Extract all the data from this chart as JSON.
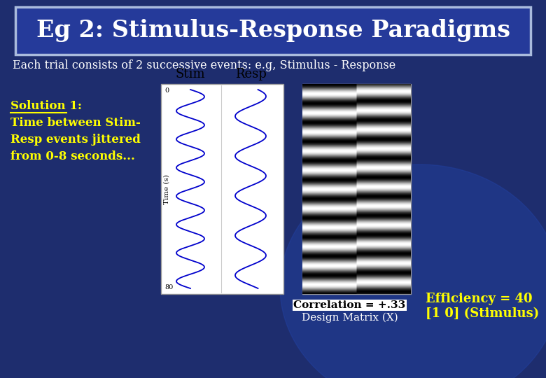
{
  "title": "Eg 2: Stimulus-Response Paradigms",
  "subtitle": "Each trial consists of 2 successive events: e.g, Stimulus - Response",
  "solution_text": [
    "Solution 1:",
    "Time between Stim-",
    "Resp events jittered",
    "from 0-8 seconds..."
  ],
  "stim_label": "Stim",
  "resp_label": "Resp",
  "time_label": "Time (s)",
  "correlation_text": "Correlation = +.33",
  "design_matrix_text": "Design Matrix (X)",
  "efficiency_text": "Efficiency = 40",
  "efficiency_text2": "[1 0] (Stimulus)",
  "bg_color": "#1e2d6e",
  "bg_color_bottom": "#0a1a4a",
  "title_box_color": "#253a9a",
  "title_border_color": "#aabbdd",
  "title_text_color": "#ffffff",
  "subtitle_color": "#ffffff",
  "solution_color": "#ffff00",
  "efficiency_color": "#ffff00",
  "wave_color": "#0000cc",
  "panel_bg": "#ffffff",
  "stim_freq": 7,
  "resp_freq": 5,
  "n_stripes": 11
}
